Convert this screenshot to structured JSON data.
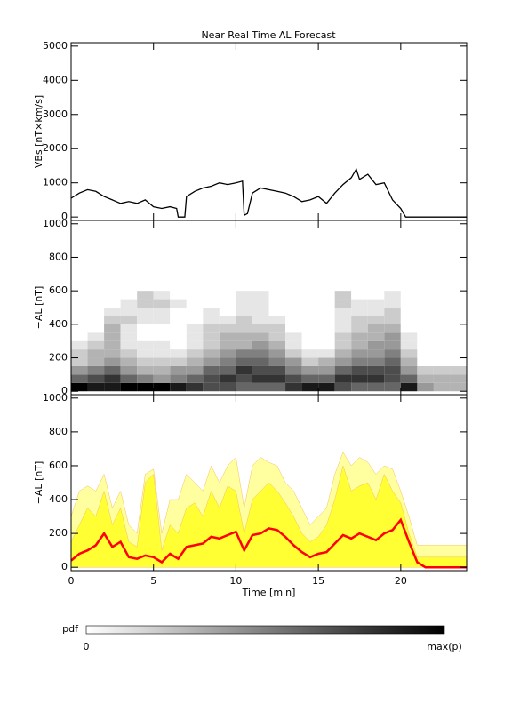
{
  "chart_data": [
    {
      "type": "line",
      "title": "Near Real Time AL Forecast",
      "ylabel": "VBs [nT×km/s]",
      "x": [
        0,
        0.5,
        1,
        1.5,
        2,
        2.5,
        3,
        3.5,
        4,
        4.5,
        5,
        5.5,
        6,
        6.4,
        6.5,
        6.9,
        7,
        7.5,
        8,
        8.5,
        9,
        9.5,
        10,
        10.4,
        10.5,
        10.7,
        11,
        11.5,
        12,
        12.5,
        13,
        13.5,
        14,
        14.5,
        15,
        15.5,
        16,
        16.5,
        17,
        17.3,
        17.5,
        18,
        18.5,
        19,
        19.5,
        20,
        20.3,
        24
      ],
      "values": [
        550,
        700,
        800,
        750,
        600,
        500,
        400,
        450,
        400,
        500,
        300,
        250,
        300,
        250,
        0,
        0,
        600,
        750,
        850,
        900,
        1000,
        950,
        1000,
        1050,
        50,
        100,
        700,
        850,
        800,
        750,
        700,
        600,
        450,
        500,
        600,
        400,
        700,
        950,
        1150,
        1400,
        1100,
        1250,
        950,
        1000,
        500,
        250,
        0,
        0
      ],
      "color": "#000000",
      "xlim": [
        0,
        24
      ],
      "xticks": [
        0,
        5,
        10,
        15,
        20
      ],
      "ylim": [
        -100,
        5100
      ],
      "yticks": [
        0,
        1000,
        2000,
        3000,
        4000,
        5000
      ]
    },
    {
      "type": "heatmap",
      "ylabel": "−AL [nT]",
      "x_bins": [
        0,
        1,
        2,
        3,
        4,
        5,
        6,
        7,
        8,
        9,
        10,
        11,
        12,
        13,
        14,
        15,
        16,
        17,
        18,
        19,
        20,
        21,
        22,
        23,
        24
      ],
      "y_bins": [
        0,
        50,
        100,
        150,
        200,
        250,
        300,
        350,
        400,
        450,
        500,
        550,
        600
      ],
      "values": [
        [
          1,
          0.6,
          0.4,
          0.2,
          0.2,
          0.1,
          0,
          0,
          0,
          0,
          0,
          0
        ],
        [
          0.9,
          0.7,
          0.5,
          0.3,
          0.3,
          0.2,
          0.1,
          0,
          0,
          0,
          0,
          0
        ],
        [
          0.9,
          0.8,
          0.6,
          0.4,
          0.3,
          0.3,
          0.3,
          0.3,
          0.2,
          0.1,
          0,
          0
        ],
        [
          1,
          0.6,
          0.4,
          0.3,
          0.2,
          0.1,
          0.1,
          0.1,
          0.2,
          0.1,
          0.1,
          0
        ],
        [
          1,
          0.5,
          0.3,
          0.2,
          0.1,
          0.1,
          0,
          0,
          0.1,
          0.1,
          0.2,
          0.2
        ],
        [
          1,
          0.4,
          0.3,
          0.2,
          0.1,
          0.1,
          0,
          0,
          0.1,
          0.1,
          0.2,
          0.1
        ],
        [
          0.9,
          0.5,
          0.4,
          0.2,
          0.1,
          0,
          0,
          0,
          0,
          0,
          0.1,
          0
        ],
        [
          0.8,
          0.6,
          0.4,
          0.3,
          0.2,
          0.1,
          0.1,
          0.1,
          0,
          0,
          0,
          0
        ],
        [
          0.7,
          0.7,
          0.6,
          0.4,
          0.3,
          0.2,
          0.2,
          0.2,
          0.1,
          0.1,
          0,
          0
        ],
        [
          0.7,
          0.8,
          0.6,
          0.5,
          0.4,
          0.3,
          0.3,
          0.2,
          0.1,
          0,
          0,
          0
        ],
        [
          0.6,
          0.7,
          0.8,
          0.6,
          0.5,
          0.3,
          0.3,
          0.2,
          0.2,
          0.1,
          0.1,
          0.1
        ],
        [
          0.6,
          0.8,
          0.7,
          0.6,
          0.5,
          0.4,
          0.3,
          0.2,
          0.1,
          0.1,
          0.1,
          0.1
        ],
        [
          0.6,
          0.8,
          0.7,
          0.5,
          0.4,
          0.3,
          0.2,
          0.2,
          0.1,
          0,
          0,
          0
        ],
        [
          0.8,
          0.7,
          0.5,
          0.4,
          0.2,
          0.1,
          0.1,
          0,
          0,
          0,
          0,
          0
        ],
        [
          0.9,
          0.6,
          0.4,
          0.2,
          0.1,
          0,
          0,
          0,
          0,
          0,
          0,
          0
        ],
        [
          0.9,
          0.6,
          0.4,
          0.3,
          0.1,
          0,
          0,
          0,
          0,
          0,
          0,
          0
        ],
        [
          0.7,
          0.8,
          0.6,
          0.4,
          0.3,
          0.2,
          0.2,
          0.1,
          0.1,
          0.1,
          0.2,
          0.2
        ],
        [
          0.6,
          0.8,
          0.7,
          0.5,
          0.4,
          0.3,
          0.3,
          0.2,
          0.2,
          0.1,
          0.1,
          0
        ],
        [
          0.6,
          0.8,
          0.7,
          0.5,
          0.4,
          0.4,
          0.3,
          0.3,
          0.2,
          0.1,
          0.1,
          0
        ],
        [
          0.6,
          0.7,
          0.7,
          0.6,
          0.5,
          0.4,
          0.4,
          0.3,
          0.2,
          0.2,
          0.1,
          0.1
        ],
        [
          0.9,
          0.6,
          0.4,
          0.3,
          0.2,
          0.1,
          0.1,
          0,
          0,
          0,
          0,
          0
        ],
        [
          0.4,
          0.3,
          0.2,
          0,
          0,
          0,
          0,
          0,
          0,
          0,
          0,
          0
        ],
        [
          0.3,
          0.3,
          0.2,
          0,
          0,
          0,
          0,
          0,
          0,
          0,
          0,
          0
        ],
        [
          0.3,
          0.3,
          0.2,
          0,
          0,
          0,
          0,
          0,
          0,
          0,
          0,
          0
        ]
      ],
      "xlim": [
        0,
        24
      ],
      "xticks": [
        0,
        5,
        10,
        15,
        20
      ],
      "ylim": [
        -20,
        1020
      ],
      "yticks": [
        0,
        200,
        400,
        600,
        800,
        1000
      ]
    },
    {
      "type": "band",
      "ylabel": "−AL [nT]",
      "xlabel": "Time [min]",
      "x": [
        0,
        0.5,
        1,
        1.5,
        2,
        2.5,
        3,
        3.5,
        4,
        4.5,
        5,
        5.5,
        6,
        6.5,
        7,
        7.5,
        8,
        8.5,
        9,
        9.5,
        10,
        10.5,
        11,
        11.5,
        12,
        12.5,
        13,
        13.5,
        14,
        14.5,
        15,
        15.5,
        16,
        16.5,
        17,
        17.5,
        18,
        18.5,
        19,
        19.5,
        20,
        20.5,
        21,
        21.5,
        24
      ],
      "series": [
        {
          "color": "#ffffa0",
          "values": [
            300,
            450,
            480,
            450,
            550,
            350,
            450,
            250,
            200,
            550,
            580,
            200,
            400,
            400,
            550,
            500,
            450,
            600,
            500,
            600,
            650,
            350,
            600,
            650,
            620,
            600,
            500,
            450,
            350,
            250,
            300,
            350,
            550,
            680,
            600,
            650,
            620,
            550,
            600,
            580,
            450,
            300,
            130,
            130,
            130
          ]
        },
        {
          "color": "#ffff33",
          "values": [
            150,
            250,
            350,
            300,
            450,
            250,
            350,
            150,
            120,
            500,
            550,
            100,
            250,
            200,
            350,
            380,
            300,
            450,
            350,
            480,
            450,
            200,
            400,
            450,
            500,
            450,
            380,
            300,
            200,
            150,
            180,
            250,
            400,
            600,
            450,
            480,
            500,
            400,
            550,
            450,
            380,
            200,
            60,
            60,
            60
          ]
        },
        {
          "color": "#ff0000",
          "values": [
            40,
            80,
            100,
            130,
            200,
            120,
            150,
            60,
            50,
            70,
            60,
            30,
            80,
            50,
            120,
            130,
            140,
            180,
            170,
            190,
            210,
            100,
            190,
            200,
            230,
            220,
            180,
            130,
            90,
            60,
            80,
            90,
            140,
            190,
            170,
            200,
            180,
            160,
            200,
            220,
            280,
            150,
            30,
            0,
            0
          ]
        }
      ],
      "xlim": [
        0,
        24
      ],
      "xticks": [
        0,
        5,
        10,
        15,
        20
      ],
      "ylim": [
        -20,
        1020
      ],
      "yticks": [
        0,
        200,
        400,
        600,
        800,
        1000
      ]
    }
  ],
  "colorbar": {
    "label": "pdf",
    "min_label": "0",
    "max_label": "max(p)"
  }
}
